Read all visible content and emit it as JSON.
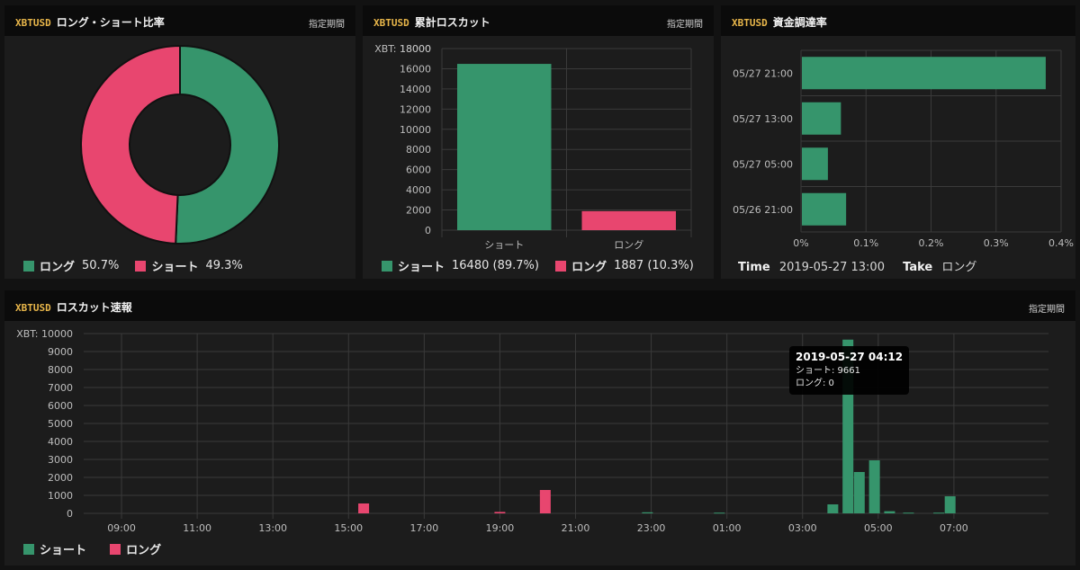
{
  "colors": {
    "short": "#36956c",
    "long": "#e8466f",
    "symbol": "#e8b64a",
    "panel": "#1c1c1c",
    "header": "#0b0b0b"
  },
  "panels": {
    "ratio": {
      "symbol": "XBTUSD",
      "title": "ロング・ショート比率",
      "period": "指定期間",
      "legend": [
        {
          "label": "ロング",
          "value": "50.7%",
          "color": "#36956c"
        },
        {
          "label": "ショート",
          "value": "49.3%",
          "color": "#e8466f"
        }
      ]
    },
    "cumulative": {
      "symbol": "XBTUSD",
      "title": "累計ロスカット",
      "period": "指定期間",
      "legend": [
        {
          "label": "ショート",
          "value": "16480 (89.7%)",
          "color": "#36956c"
        },
        {
          "label": "ロング",
          "value": "1887 (10.3%)",
          "color": "#e8466f"
        }
      ]
    },
    "funding": {
      "symbol": "XBTUSD",
      "title": "資金調達率",
      "info": {
        "time_key": "Time",
        "time_value": "2019-05-27 13:00",
        "take_key": "Take",
        "take_value": "ロング"
      }
    },
    "flash": {
      "symbol": "XBTUSD",
      "title": "ロスカット速報",
      "period": "指定期間",
      "legend": [
        {
          "label": "ショート",
          "color": "#36956c"
        },
        {
          "label": "ロング",
          "color": "#e8466f"
        }
      ],
      "tooltip": {
        "title": "2019-05-27 04:12",
        "line1": "ショート: 9661",
        "line2": "ロング: 0"
      }
    }
  },
  "chart_data": [
    {
      "type": "pie",
      "labels": [
        "ロング",
        "ショート"
      ],
      "values": [
        50.7,
        49.3
      ],
      "colors": [
        "#36956c",
        "#e8466f"
      ]
    },
    {
      "type": "bar",
      "ylabel": "XBT: 18000",
      "categories": [
        "ショート",
        "ロング"
      ],
      "values": [
        16480,
        1887
      ],
      "colors": [
        "#36956c",
        "#e8466f"
      ],
      "ylim": [
        0,
        18000
      ],
      "yticks": [
        "18000",
        "16000",
        "14000",
        "12000",
        "10000",
        "8000",
        "6000",
        "4000",
        "2000",
        "0"
      ]
    },
    {
      "type": "bar",
      "orientation": "horizontal",
      "categories": [
        "05/27 21:00",
        "05/27 13:00",
        "05/27 05:00",
        "05/26 21:00"
      ],
      "values": [
        0.375,
        0.06,
        0.04,
        0.068
      ],
      "xlim": [
        0,
        0.4
      ],
      "xticks": [
        "0%",
        "0.1%",
        "0.2%",
        "0.3%",
        "0.4%"
      ],
      "color": "#36956c"
    },
    {
      "type": "bar",
      "ylabel": "XBT: 10000",
      "ylim": [
        0,
        10000
      ],
      "yticks": [
        "10000",
        "9000",
        "8000",
        "7000",
        "6000",
        "5000",
        "4000",
        "3000",
        "2000",
        "1000",
        "0"
      ],
      "xlim": [
        8.0,
        33.5
      ],
      "xticks": [
        {
          "t": 9,
          "label": "09:00"
        },
        {
          "t": 11,
          "label": "11:00"
        },
        {
          "t": 13,
          "label": "13:00"
        },
        {
          "t": 15,
          "label": "15:00"
        },
        {
          "t": 17,
          "label": "17:00"
        },
        {
          "t": 19,
          "label": "19:00"
        },
        {
          "t": 21,
          "label": "21:00"
        },
        {
          "t": 23,
          "label": "23:00"
        },
        {
          "t": 25,
          "label": "01:00"
        },
        {
          "t": 27,
          "label": "03:00"
        },
        {
          "t": 29,
          "label": "05:00"
        },
        {
          "t": 31,
          "label": "07:00"
        }
      ],
      "series": [
        {
          "name": "ショート",
          "color": "#36956c",
          "points": [
            {
              "t": 22.9,
              "v": 60
            },
            {
              "t": 24.8,
              "v": 40
            },
            {
              "t": 27.8,
              "v": 500
            },
            {
              "t": 28.2,
              "v": 9661
            },
            {
              "t": 28.5,
              "v": 2300
            },
            {
              "t": 28.9,
              "v": 2950
            },
            {
              "t": 29.3,
              "v": 120
            },
            {
              "t": 30.9,
              "v": 950
            },
            {
              "t": 29.8,
              "v": 40
            },
            {
              "t": 30.6,
              "v": 40
            }
          ]
        },
        {
          "name": "ロング",
          "color": "#e8466f",
          "points": [
            {
              "t": 15.4,
              "v": 550
            },
            {
              "t": 19.0,
              "v": 80
            },
            {
              "t": 20.2,
              "v": 1300
            }
          ]
        }
      ]
    }
  ]
}
